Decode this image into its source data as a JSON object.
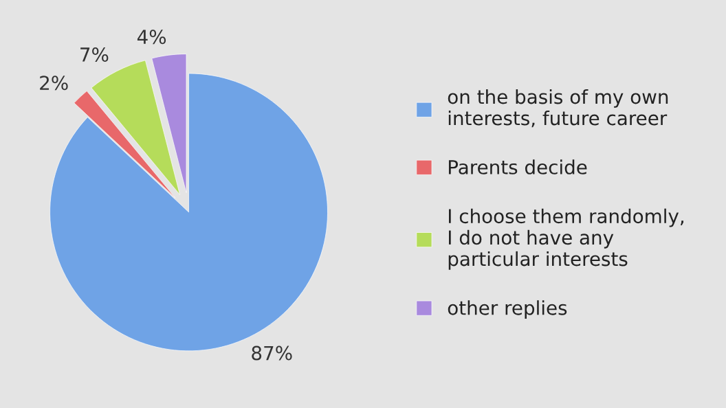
{
  "chart_data": {
    "type": "pie",
    "categories": [
      "on the basis of my own interests, future career",
      "Parents decide",
      "I choose them randomly, I do not have any particular interests",
      "other replies"
    ],
    "values": [
      87,
      2,
      7,
      4
    ],
    "value_labels": [
      "87%",
      "2%",
      "7%",
      "4%"
    ],
    "colors": [
      "#6fa3e6",
      "#e8686a",
      "#b5dc5a",
      "#a98ade"
    ],
    "legend": "right"
  }
}
